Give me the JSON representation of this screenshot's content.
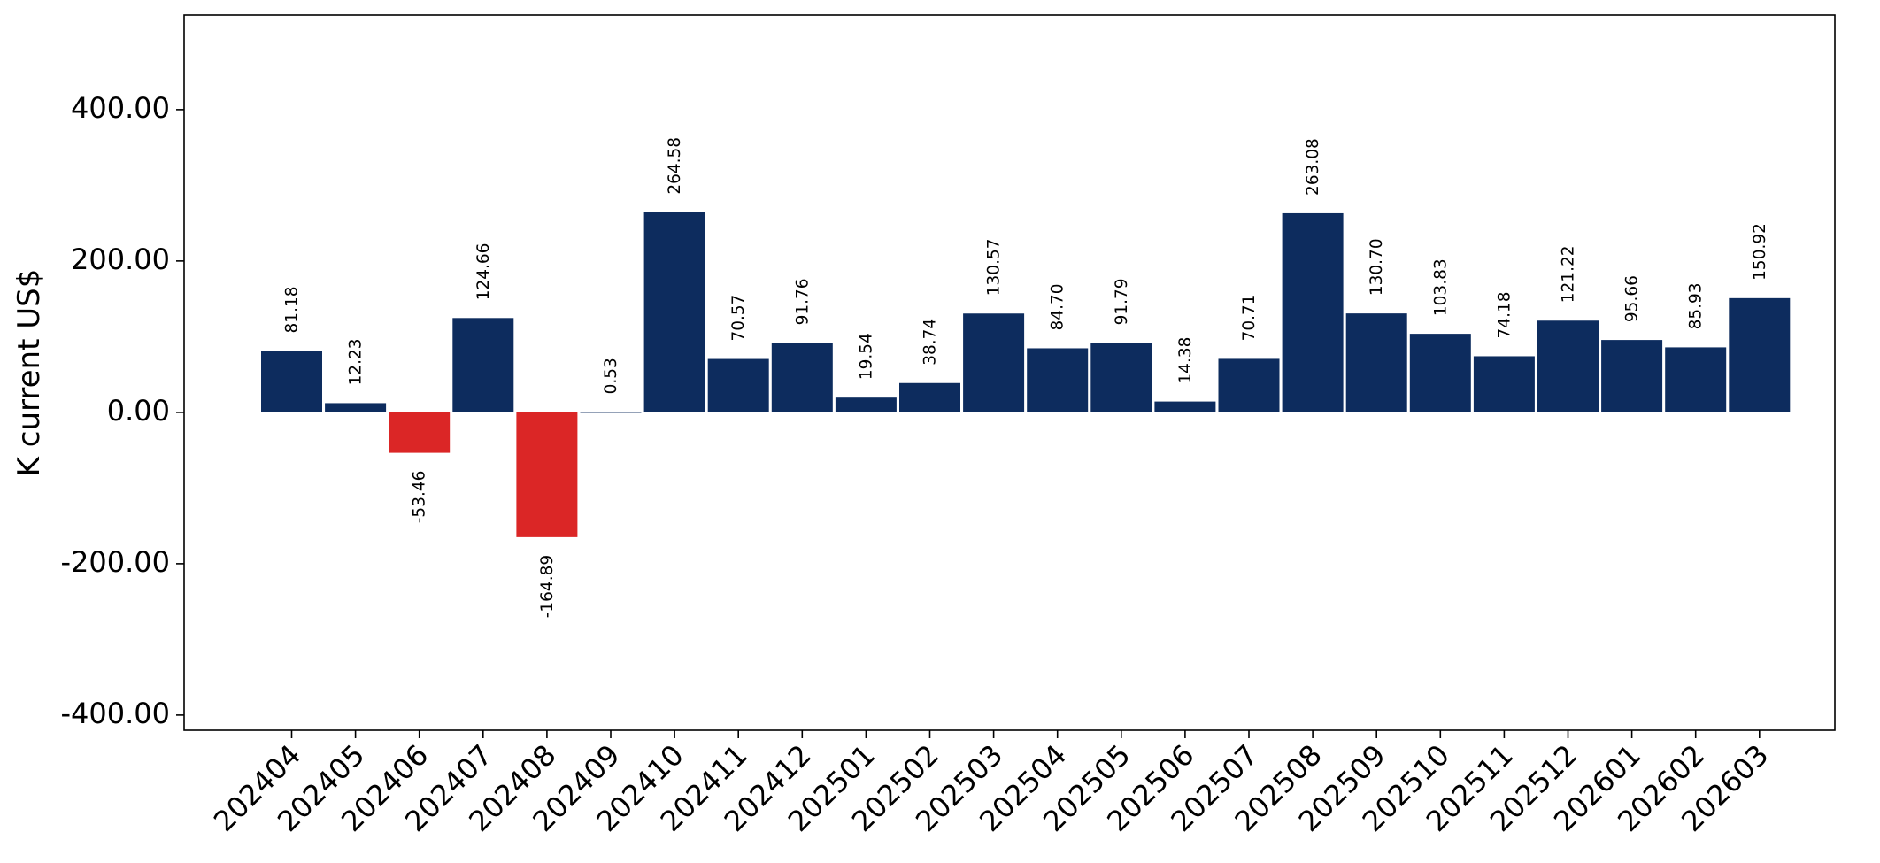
{
  "chart_data": {
    "type": "bar",
    "title": "",
    "xlabel": "",
    "ylabel": "K current US$",
    "ylim": [
      -420,
      525
    ],
    "yticks": [
      -400,
      -200,
      0,
      200,
      400
    ],
    "ytick_labels": [
      "-400.00",
      "-200.00",
      "0.00",
      "200.00",
      "400.00"
    ],
    "grid": false,
    "categories": [
      "202404",
      "202405",
      "202406",
      "202407",
      "202408",
      "202409",
      "202410",
      "202411",
      "202412",
      "202501",
      "202502",
      "202503",
      "202504",
      "202505",
      "202506",
      "202507",
      "202508",
      "202509",
      "202510",
      "202511",
      "202512",
      "202601",
      "202602",
      "202603"
    ],
    "values": [
      81.18,
      12.23,
      -53.46,
      124.66,
      -164.89,
      0.53,
      264.58,
      70.57,
      91.76,
      19.54,
      38.74,
      130.57,
      84.7,
      91.79,
      14.38,
      70.71,
      263.08,
      130.7,
      103.83,
      74.18,
      121.22,
      95.66,
      85.93,
      150.92
    ],
    "value_labels": [
      "81.18",
      "12.23",
      "-53.46",
      "124.66",
      "-164.89",
      "0.53",
      "264.58",
      "70.57",
      "91.76",
      "19.54",
      "38.74",
      "130.57",
      "84.70",
      "91.79",
      "14.38",
      "70.71",
      "263.08",
      "130.70",
      "103.83",
      "74.18",
      "121.22",
      "95.66",
      "85.93",
      "150.92"
    ],
    "colors": {
      "positive": "#0d2c5e",
      "negative": "#db2626",
      "axis": "#000000"
    }
  }
}
